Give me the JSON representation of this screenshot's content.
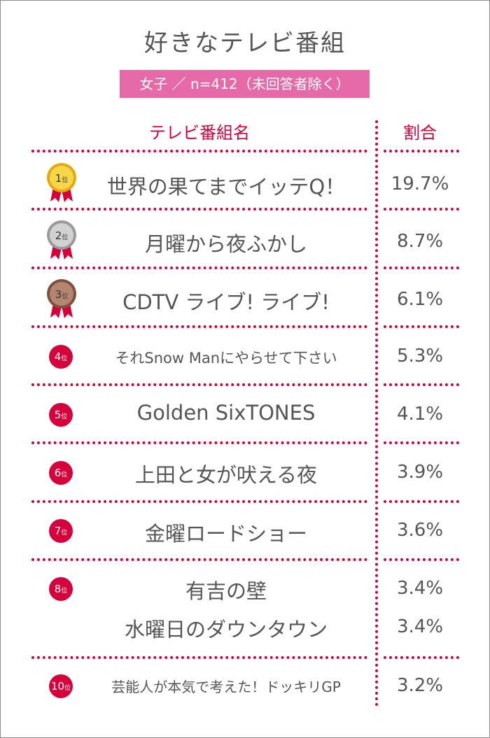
{
  "title": "好きなテレビ番組",
  "subtitle": "女子 ／ n=412（未回答者除く）",
  "headers": {
    "name": "テレビ番組名",
    "share": "割合"
  },
  "rank_suffix": "位",
  "colors": {
    "accent": "#d6003a",
    "pink": "#e76aa8",
    "gold": "#f3c21a",
    "silver": "#b9b9b9",
    "bronze": "#a0705a"
  },
  "rows": [
    {
      "rank": "1",
      "icon": "gold-medal-icon",
      "name": "世界の果てまでイッテQ！",
      "share": "19.7%"
    },
    {
      "rank": "2",
      "icon": "silver-medal-icon",
      "name": "月曜から夜ふかし",
      "share": "8.7%"
    },
    {
      "rank": "3",
      "icon": "bronze-medal-icon",
      "name": "CDTV ライブ! ライブ!",
      "share": "6.1%"
    },
    {
      "rank": "4",
      "icon": "rank-badge-icon",
      "name": "それSnow Manにやらせて下さい",
      "share": "5.3%"
    },
    {
      "rank": "5",
      "icon": "rank-badge-icon",
      "name": "Golden SixTONES",
      "share": "4.1%"
    },
    {
      "rank": "6",
      "icon": "rank-badge-icon",
      "name": "上田と女が吠える夜",
      "share": "3.9%"
    },
    {
      "rank": "7",
      "icon": "rank-badge-icon",
      "name": "金曜ロードショー",
      "share": "3.6%"
    },
    {
      "rank": "8",
      "icon": "rank-badge-icon",
      "name": "有吉の壁",
      "share": "3.4%"
    },
    {
      "rank": "",
      "icon": "",
      "name": "水曜日のダウンタウン",
      "share": "3.4%"
    },
    {
      "rank": "10",
      "icon": "rank-badge-icon",
      "name": "芸能人が本気で考えた！ドッキリGP",
      "share": "3.2%"
    }
  ]
}
